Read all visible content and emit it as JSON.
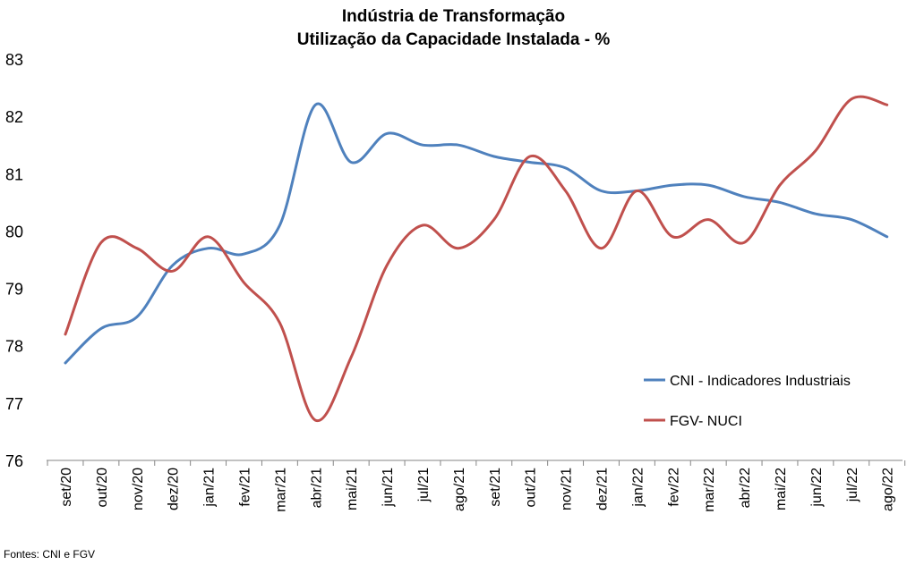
{
  "chart_data": {
    "type": "line",
    "title": "Indústria de Transformação",
    "subtitle": "Utilização da Capacidade Instalada - %",
    "xlabel": "",
    "ylabel": "",
    "categories": [
      "set/20",
      "out/20",
      "nov/20",
      "dez/20",
      "jan/21",
      "fev/21",
      "mar/21",
      "abr/21",
      "mai/21",
      "jun/21",
      "jul/21",
      "ago/21",
      "set/21",
      "out/21",
      "nov/21",
      "dez/21",
      "jan/22",
      "fev/22",
      "mar/22",
      "abr/22",
      "mai/22",
      "jun/22",
      "jul/22",
      "ago/22"
    ],
    "series": [
      {
        "name": "CNI - Indicadores Industriais",
        "color": "#4F81BD",
        "values": [
          77.7,
          78.3,
          78.5,
          79.4,
          79.7,
          79.6,
          80.1,
          82.2,
          81.2,
          81.7,
          81.5,
          81.5,
          81.3,
          81.2,
          81.1,
          80.7,
          80.7,
          80.8,
          80.8,
          80.6,
          80.5,
          80.3,
          80.2,
          79.9
        ]
      },
      {
        "name": "FGV- NUCI",
        "color": "#C0504D",
        "values": [
          78.2,
          79.8,
          79.7,
          79.3,
          79.9,
          79.1,
          78.4,
          76.7,
          77.8,
          79.4,
          80.1,
          79.7,
          80.2,
          81.3,
          80.7,
          79.7,
          80.7,
          79.9,
          80.2,
          79.8,
          80.8,
          81.4,
          82.3,
          82.2
        ]
      }
    ],
    "ylim": [
      76,
      83
    ],
    "yticks": [
      "76",
      "77",
      "78",
      "79",
      "80",
      "81",
      "82",
      "83"
    ],
    "grid": false,
    "legend_position": "right-center",
    "source": "Fontes: CNI e FGV"
  }
}
